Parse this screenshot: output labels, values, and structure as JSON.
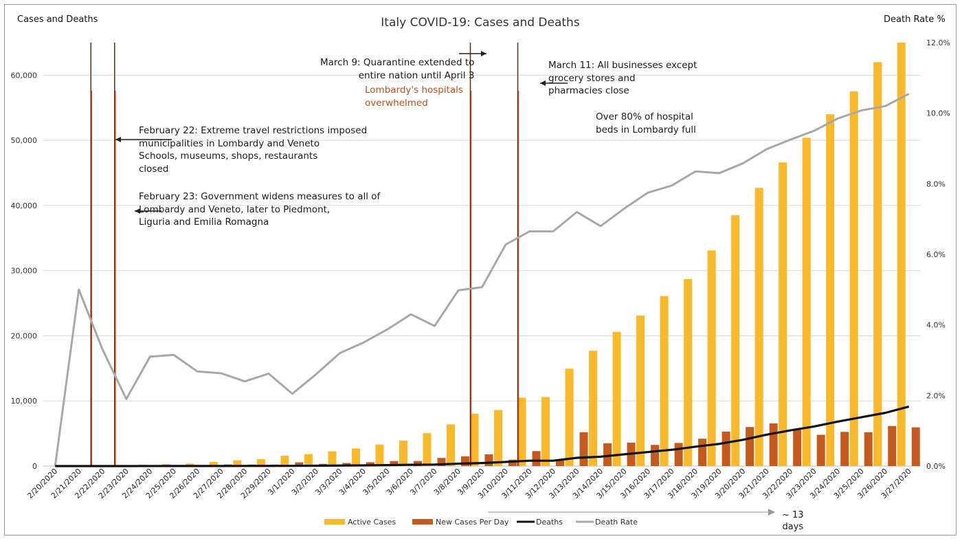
{
  "chart_data": {
    "type": "bar",
    "title": "Italy COVID-19: Cases and Deaths",
    "left_axis_label": "Cases and Deaths",
    "right_axis_label": "Death Rate %",
    "categories": [
      "2/20/2020",
      "2/21/2020",
      "2/22/2020",
      "2/23/2020",
      "2/24/2020",
      "2/25/2020",
      "2/26/2020",
      "2/27/2020",
      "2/28/2020",
      "2/29/2020",
      "3/1/2020",
      "3/2/2020",
      "3/3/2020",
      "3/4/2020",
      "3/5/2020",
      "3/6/2020",
      "3/7/2020",
      "3/8/2020",
      "3/9/2020",
      "3/10/2020",
      "3/11/2020",
      "3/12/2020",
      "3/13/2020",
      "3/14/2020",
      "3/15/2020",
      "3/16/2020",
      "3/17/2020",
      "3/18/2020",
      "3/19/2020",
      "3/20/2020",
      "3/21/2020",
      "3/22/2020",
      "3/23/2020",
      "3/24/2020",
      "3/25/2020",
      "3/26/2020",
      "3/27/2020"
    ],
    "y_left": {
      "min": 0,
      "max": 65000,
      "ticks": [
        0,
        10000,
        20000,
        30000,
        40000,
        50000,
        60000
      ],
      "tick_labels": [
        "0",
        "10,000",
        "20,000",
        "30,000",
        "40,000",
        "50,000",
        "60,000"
      ]
    },
    "y_right": {
      "min": 0,
      "max": 12,
      "ticks": [
        0,
        2,
        4,
        6,
        8,
        10,
        12
      ],
      "tick_labels": [
        "0.0%",
        "2.0%",
        "4.0%",
        "6.0%",
        "8.0%",
        "10.0%",
        "12.0%"
      ]
    },
    "grid": true,
    "legend_position": "bottom",
    "series": [
      {
        "name": "Active Cases",
        "kind": "bar",
        "axis": "left",
        "color": "#f9b92a",
        "values": [
          3,
          19,
          70,
          150,
          220,
          310,
          380,
          640,
          880,
          1050,
          1580,
          1840,
          2260,
          2700,
          3300,
          3920,
          5050,
          6400,
          8050,
          8600,
          10500,
          10600,
          14950,
          17700,
          20600,
          23100,
          26100,
          28700,
          33100,
          38500,
          42700,
          46600,
          50400,
          54000,
          57500,
          62000,
          65000
        ]
      },
      {
        "name": "New Cases Per Day",
        "kind": "bar",
        "axis": "left",
        "color": "#c55a1e",
        "values": [
          0,
          16,
          60,
          80,
          80,
          90,
          80,
          250,
          240,
          230,
          570,
          340,
          470,
          590,
          770,
          780,
          1250,
          1500,
          1800,
          980,
          2300,
          1000,
          5200,
          3500,
          3600,
          3250,
          3550,
          4200,
          5300,
          6000,
          6550,
          5550,
          4800,
          5250,
          5200,
          6150,
          5950
        ]
      },
      {
        "name": "Deaths",
        "kind": "line",
        "axis": "left",
        "color": "#111111",
        "values": [
          0,
          1,
          2,
          3,
          7,
          10,
          12,
          17,
          21,
          29,
          34,
          52,
          79,
          107,
          148,
          197,
          233,
          366,
          463,
          631,
          827,
          827,
          1266,
          1441,
          1809,
          2158,
          2503,
          2978,
          3405,
          4032,
          4825,
          5476,
          6077,
          6820,
          7503,
          8165,
          9134
        ]
      },
      {
        "name": "Death Rate",
        "kind": "line",
        "axis": "right",
        "color": "#a8a8a8",
        "values": [
          0,
          5.0,
          3.3,
          1.9,
          3.1,
          3.15,
          2.68,
          2.63,
          2.4,
          2.62,
          2.05,
          2.6,
          3.2,
          3.5,
          3.87,
          4.3,
          3.97,
          4.98,
          5.07,
          6.28,
          6.65,
          6.65,
          7.2,
          6.8,
          7.3,
          7.75,
          7.95,
          8.35,
          8.3,
          8.58,
          8.98,
          9.25,
          9.5,
          9.85,
          10.08,
          10.2,
          10.55
        ]
      }
    ],
    "event_lines": [
      {
        "date": "2/22/2020"
      },
      {
        "date": "2/23/2020"
      },
      {
        "date": "3/9/2020"
      },
      {
        "date": "3/11/2020"
      }
    ],
    "annotations": {
      "feb22": "February 22: Extreme travel restrictions imposed\nmunicipalities in Lombardy and Veneto\nSchools, museums, shops, restaurants\nclosed",
      "feb23": "February 23: Government widens measures to all of\nLombardy and Veneto, later to Piedmont,\nLiguria and Emilia Romagna",
      "mar9": "March 9: Quarantine extended to\nentire nation until April 3",
      "mar9_red": "Lombardy's hospitals\noverwhelmed",
      "mar11": "March 11: All businesses except\ngrocery stores and\npharmacies close",
      "mar11_b": "Over 80% of hospital\nbeds in Lombardy full",
      "days_label": "~ 13\ndays"
    }
  }
}
